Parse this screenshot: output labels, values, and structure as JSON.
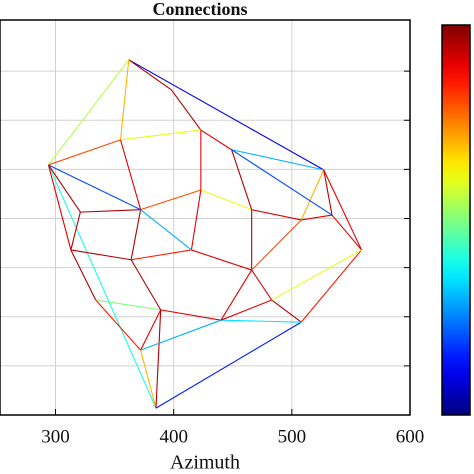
{
  "chart_data": {
    "type": "network",
    "title": "Connections",
    "x_label": "Azimuth",
    "xlim": [
      253,
      600
    ],
    "xticks": [
      300,
      400,
      500,
      600
    ],
    "ylim": [
      0,
      8
    ],
    "yticks": [
      1,
      2,
      3,
      4,
      5,
      6,
      7
    ],
    "grid": true,
    "colormap": "jet",
    "clim": [
      0,
      1
    ],
    "nodes": [
      [
        362,
        7.23
      ],
      [
        294,
        5.09
      ],
      [
        527,
        4.99
      ],
      [
        559,
        3.36
      ],
      [
        385,
        0.14
      ],
      [
        508,
        1.89
      ],
      [
        334,
        2.34
      ],
      [
        398,
        6.62
      ],
      [
        423,
        5.8
      ],
      [
        449,
        5.4
      ],
      [
        355,
        5.6
      ],
      [
        321,
        4.13
      ],
      [
        372,
        4.18
      ],
      [
        423,
        4.58
      ],
      [
        466,
        4.18
      ],
      [
        508,
        3.97
      ],
      [
        313,
        3.36
      ],
      [
        364,
        3.16
      ],
      [
        415,
        3.36
      ],
      [
        466,
        2.95
      ],
      [
        389,
        2.14
      ],
      [
        440,
        1.93
      ],
      [
        372,
        1.32
      ],
      [
        483,
        2.34
      ],
      [
        534,
        4.07
      ]
    ],
    "edges": [
      [
        0,
        1,
        0.55
      ],
      [
        0,
        2,
        0.1
      ],
      [
        1,
        4,
        0.4
      ],
      [
        4,
        5,
        0.15
      ],
      [
        2,
        3,
        0.9
      ],
      [
        3,
        5,
        0.85
      ],
      [
        0,
        7,
        0.95
      ],
      [
        0,
        10,
        0.7
      ],
      [
        7,
        8,
        0.95
      ],
      [
        8,
        9,
        0.9
      ],
      [
        10,
        8,
        0.6
      ],
      [
        1,
        10,
        0.8
      ],
      [
        1,
        11,
        0.95
      ],
      [
        11,
        12,
        0.95
      ],
      [
        10,
        12,
        0.9
      ],
      [
        12,
        13,
        0.8
      ],
      [
        13,
        8,
        0.9
      ],
      [
        13,
        14,
        0.6
      ],
      [
        9,
        14,
        0.95
      ],
      [
        9,
        2,
        0.3
      ],
      [
        14,
        15,
        0.9
      ],
      [
        15,
        2,
        0.7
      ],
      [
        15,
        24,
        0.9
      ],
      [
        24,
        3,
        0.9
      ],
      [
        24,
        2,
        0.95
      ],
      [
        11,
        16,
        0.95
      ],
      [
        16,
        17,
        0.95
      ],
      [
        12,
        17,
        0.95
      ],
      [
        17,
        18,
        0.85
      ],
      [
        13,
        18,
        0.9
      ],
      [
        18,
        19,
        0.9
      ],
      [
        14,
        19,
        0.95
      ],
      [
        19,
        15,
        0.8
      ],
      [
        19,
        23,
        0.9
      ],
      [
        23,
        5,
        0.95
      ],
      [
        23,
        3,
        0.6
      ],
      [
        16,
        6,
        0.95
      ],
      [
        6,
        20,
        0.5
      ],
      [
        17,
        20,
        0.95
      ],
      [
        20,
        21,
        0.9
      ],
      [
        21,
        19,
        0.9
      ],
      [
        21,
        5,
        0.35
      ],
      [
        6,
        22,
        0.85
      ],
      [
        22,
        20,
        0.9
      ],
      [
        22,
        4,
        0.7
      ],
      [
        20,
        4,
        0.95
      ],
      [
        21,
        23,
        0.9
      ],
      [
        1,
        16,
        0.9
      ],
      [
        18,
        12,
        0.3
      ],
      [
        9,
        24,
        0.2
      ],
      [
        1,
        12,
        0.2
      ],
      [
        22,
        21,
        0.3
      ]
    ]
  }
}
